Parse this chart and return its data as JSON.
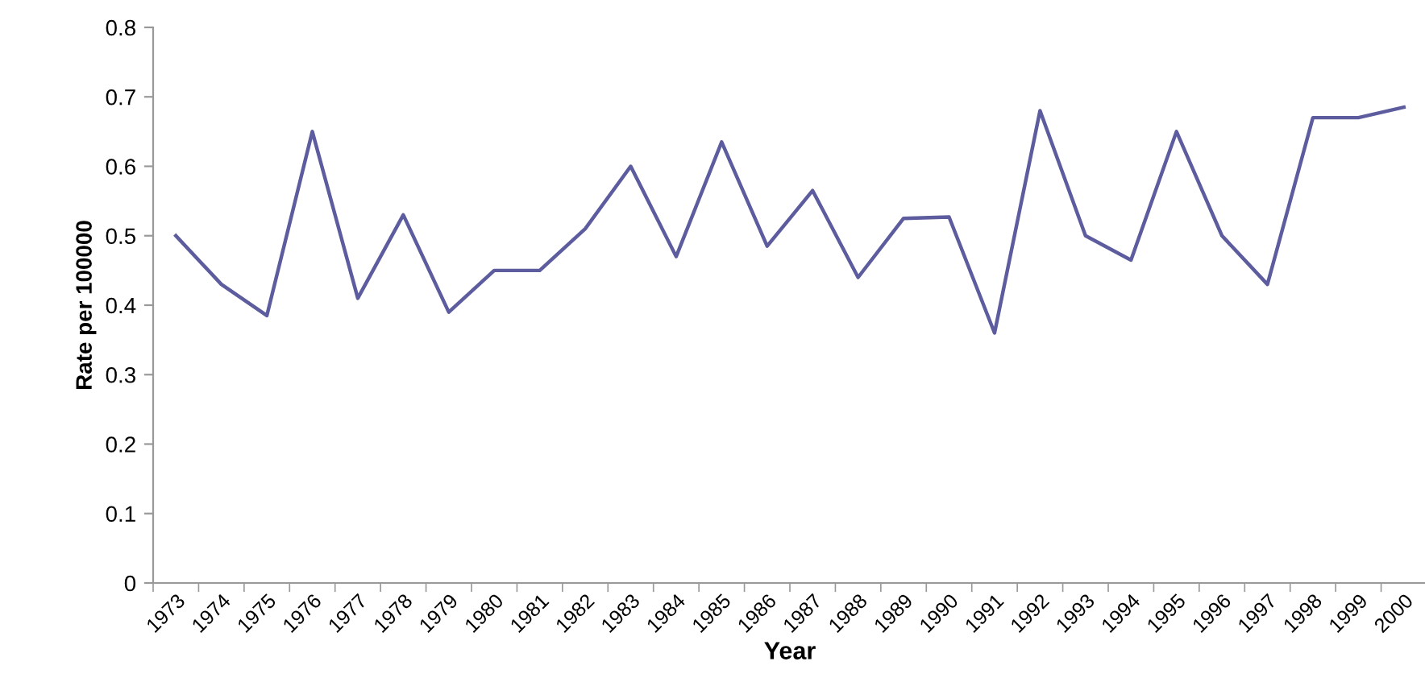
{
  "chart_data": {
    "type": "line",
    "xlabel": "Year",
    "ylabel": "Rate per 100000",
    "categories": [
      "1973",
      "1974",
      "1975",
      "1976",
      "1977",
      "1978",
      "1979",
      "1980",
      "1981",
      "1982",
      "1983",
      "1984",
      "1985",
      "1986",
      "1987",
      "1988",
      "1989",
      "1990",
      "1991",
      "1992",
      "1993",
      "1994",
      "1995",
      "1996",
      "1997",
      "1998",
      "1999",
      "2000"
    ],
    "series": [
      {
        "color": "#5c5c9e",
        "values": [
          0.5,
          0.43,
          0.385,
          0.65,
          0.41,
          0.53,
          0.39,
          0.45,
          0.45,
          0.51,
          0.6,
          0.47,
          0.635,
          0.485,
          0.565,
          0.44,
          0.525,
          0.527,
          0.36,
          0.68,
          0.5,
          0.465,
          0.65,
          0.5,
          0.43,
          0.67,
          0.67,
          0.685
        ]
      }
    ],
    "ylim": [
      0,
      0.8
    ],
    "yticks": [
      0,
      0.1,
      0.2,
      0.3,
      0.4,
      0.5,
      0.6,
      0.7,
      0.8
    ],
    "grid": false,
    "legend": false,
    "marker": "none",
    "line_style": "solid"
  }
}
